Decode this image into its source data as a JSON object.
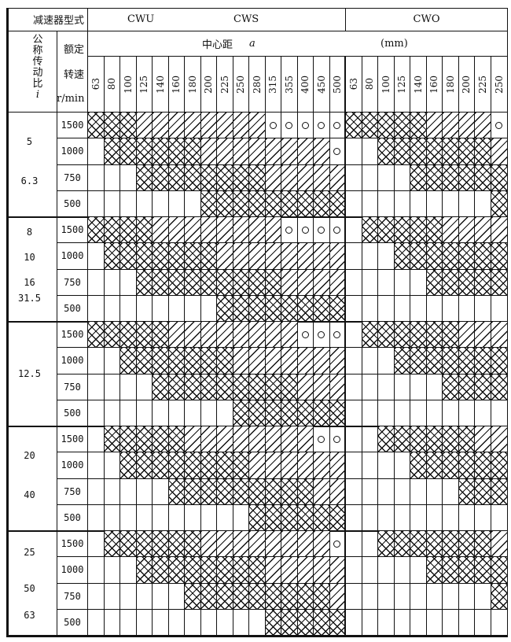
{
  "header": {
    "type_label": "减速器型式",
    "type_cwu": "CWU",
    "type_cws": "CWS",
    "type_cwo": "CWO",
    "ratio_label": [
      "公",
      "称",
      "传",
      "动",
      "比"
    ],
    "ratio_symbol": "i",
    "speed_label_1": "额定",
    "speed_label_2": "转速",
    "speed_unit": "r/min",
    "center_distance_label": "中心距",
    "center_distance_symbol": "a",
    "unit": "(mm)"
  },
  "columns_cw_u_s": [
    "63",
    "80",
    "100",
    "125",
    "140",
    "160",
    "180",
    "200",
    "225",
    "250",
    "280",
    "315",
    "355",
    "400",
    "450",
    "500"
  ],
  "columns_cwo": [
    "63",
    "80",
    "100",
    "125",
    "140",
    "160",
    "180",
    "200",
    "225",
    "250"
  ],
  "groups": [
    {
      "ratios": [
        "5",
        "6.3"
      ],
      "rows": [
        {
          "speed": "1500",
          "cws": "XXX////////ooooo",
          "cwo": "XXXXX////o"
        },
        {
          "speed": "1000",
          "cws": ".XXXXXX////////o",
          "cwo": "..XXXXXXX/"
        },
        {
          "speed": "750",
          "cws": "...XXXXXXXX/////",
          "cwo": "....XXXXXX"
        },
        {
          "speed": "500",
          "cws": ".......XXXXXXXXX",
          "cwo": ".........X"
        }
      ]
    },
    {
      "ratios": [
        "8",
        "10",
        "16",
        "31.5"
      ],
      "rows": [
        {
          "speed": "1500",
          "cws": "XXXX////////oooo",
          "cwo": ".XXXXX////"
        },
        {
          "speed": "1000",
          "cws": ".XXXXXXX////////",
          "cwo": "...XXXXXXX"
        },
        {
          "speed": "750",
          "cws": "...XXXXXXXXX////",
          "cwo": ".....XXXXX"
        },
        {
          "speed": "500",
          "cws": "........XXXXXXXX",
          "cwo": ".........."
        }
      ]
    },
    {
      "ratios": [
        "12.5"
      ],
      "rows": [
        {
          "speed": "1500",
          "cws": "XXXXX////////ooo",
          "cwo": ".XXXXXX///"
        },
        {
          "speed": "1000",
          "cws": "..XXXXXXX///////",
          "cwo": "...XXXXXXX"
        },
        {
          "speed": "750",
          "cws": "....XXXXXXXXX///",
          "cwo": "......XXXX"
        },
        {
          "speed": "500",
          "cws": ".........XXXXXXX",
          "cwo": ".........."
        }
      ]
    },
    {
      "ratios": [
        "20",
        "40"
      ],
      "rows": [
        {
          "speed": "1500",
          "cws": ".XXXXX////////oo",
          "cwo": "..XXXXXX//"
        },
        {
          "speed": "1000",
          "cws": "..XXXXXXXX//////",
          "cwo": "....XXXXXX"
        },
        {
          "speed": "750",
          "cws": ".....XXXXXXXXX//",
          "cwo": ".......XXX"
        },
        {
          "speed": "500",
          "cws": "..........XXXXXX",
          "cwo": ".........."
        }
      ]
    },
    {
      "ratios": [
        "25",
        "50",
        "63"
      ],
      "rows": [
        {
          "speed": "1500",
          "cws": ".XXXXXX////////o",
          "cwo": "..XXXXXXX/"
        },
        {
          "speed": "1000",
          "cws": "...XXXXXXXX/////",
          "cwo": ".....XXXXX"
        },
        {
          "speed": "750",
          "cws": "......XXXXXXXXX/",
          "cwo": ".........X"
        },
        {
          "speed": "500",
          "cws": "...........XXXXX",
          "cwo": ".........."
        }
      ]
    }
  ]
}
